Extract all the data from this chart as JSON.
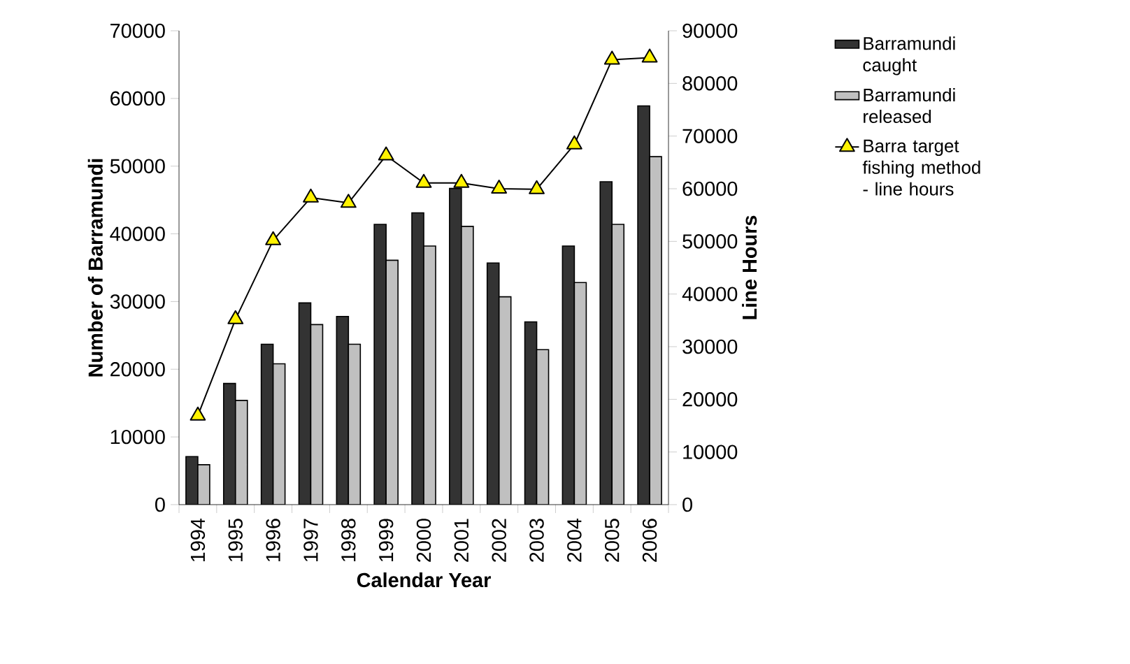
{
  "chart_data": {
    "type": "bar",
    "xlabel": "Calendar Year",
    "ylabel": "Number of Barramundi",
    "y2label": "Line Hours",
    "categories": [
      "1994",
      "1995",
      "1996",
      "1997",
      "1998",
      "1999",
      "2000",
      "2001",
      "2002",
      "2003",
      "2004",
      "2005",
      "2006"
    ],
    "series": [
      {
        "name": "Barramundi caught",
        "color": "#333333",
        "values": [
          7100,
          17900,
          23700,
          29800,
          27800,
          41400,
          43100,
          46700,
          35700,
          27000,
          38200,
          47700,
          58900
        ]
      },
      {
        "name": "Barramundi released",
        "color": "#c0c0c0",
        "values": [
          5900,
          15400,
          20800,
          26600,
          23700,
          36100,
          38200,
          41100,
          30700,
          22900,
          32800,
          41400,
          51400
        ]
      },
      {
        "name": "Barra target fishing method - line hours",
        "type": "line",
        "axis": "y2",
        "color": "#000000",
        "marker": "triangle",
        "values": [
          16900,
          35200,
          50200,
          58300,
          57300,
          66300,
          61100,
          61100,
          60000,
          59900,
          68400,
          84500,
          84900
        ]
      }
    ],
    "ylim": [
      0,
      70000
    ],
    "yticks": [
      0,
      10000,
      20000,
      30000,
      40000,
      50000,
      60000,
      70000
    ],
    "y2lim": [
      0,
      90000
    ],
    "y2ticks": [
      0,
      10000,
      20000,
      30000,
      40000,
      50000,
      60000,
      70000,
      80000,
      90000
    ],
    "legend": "right"
  }
}
